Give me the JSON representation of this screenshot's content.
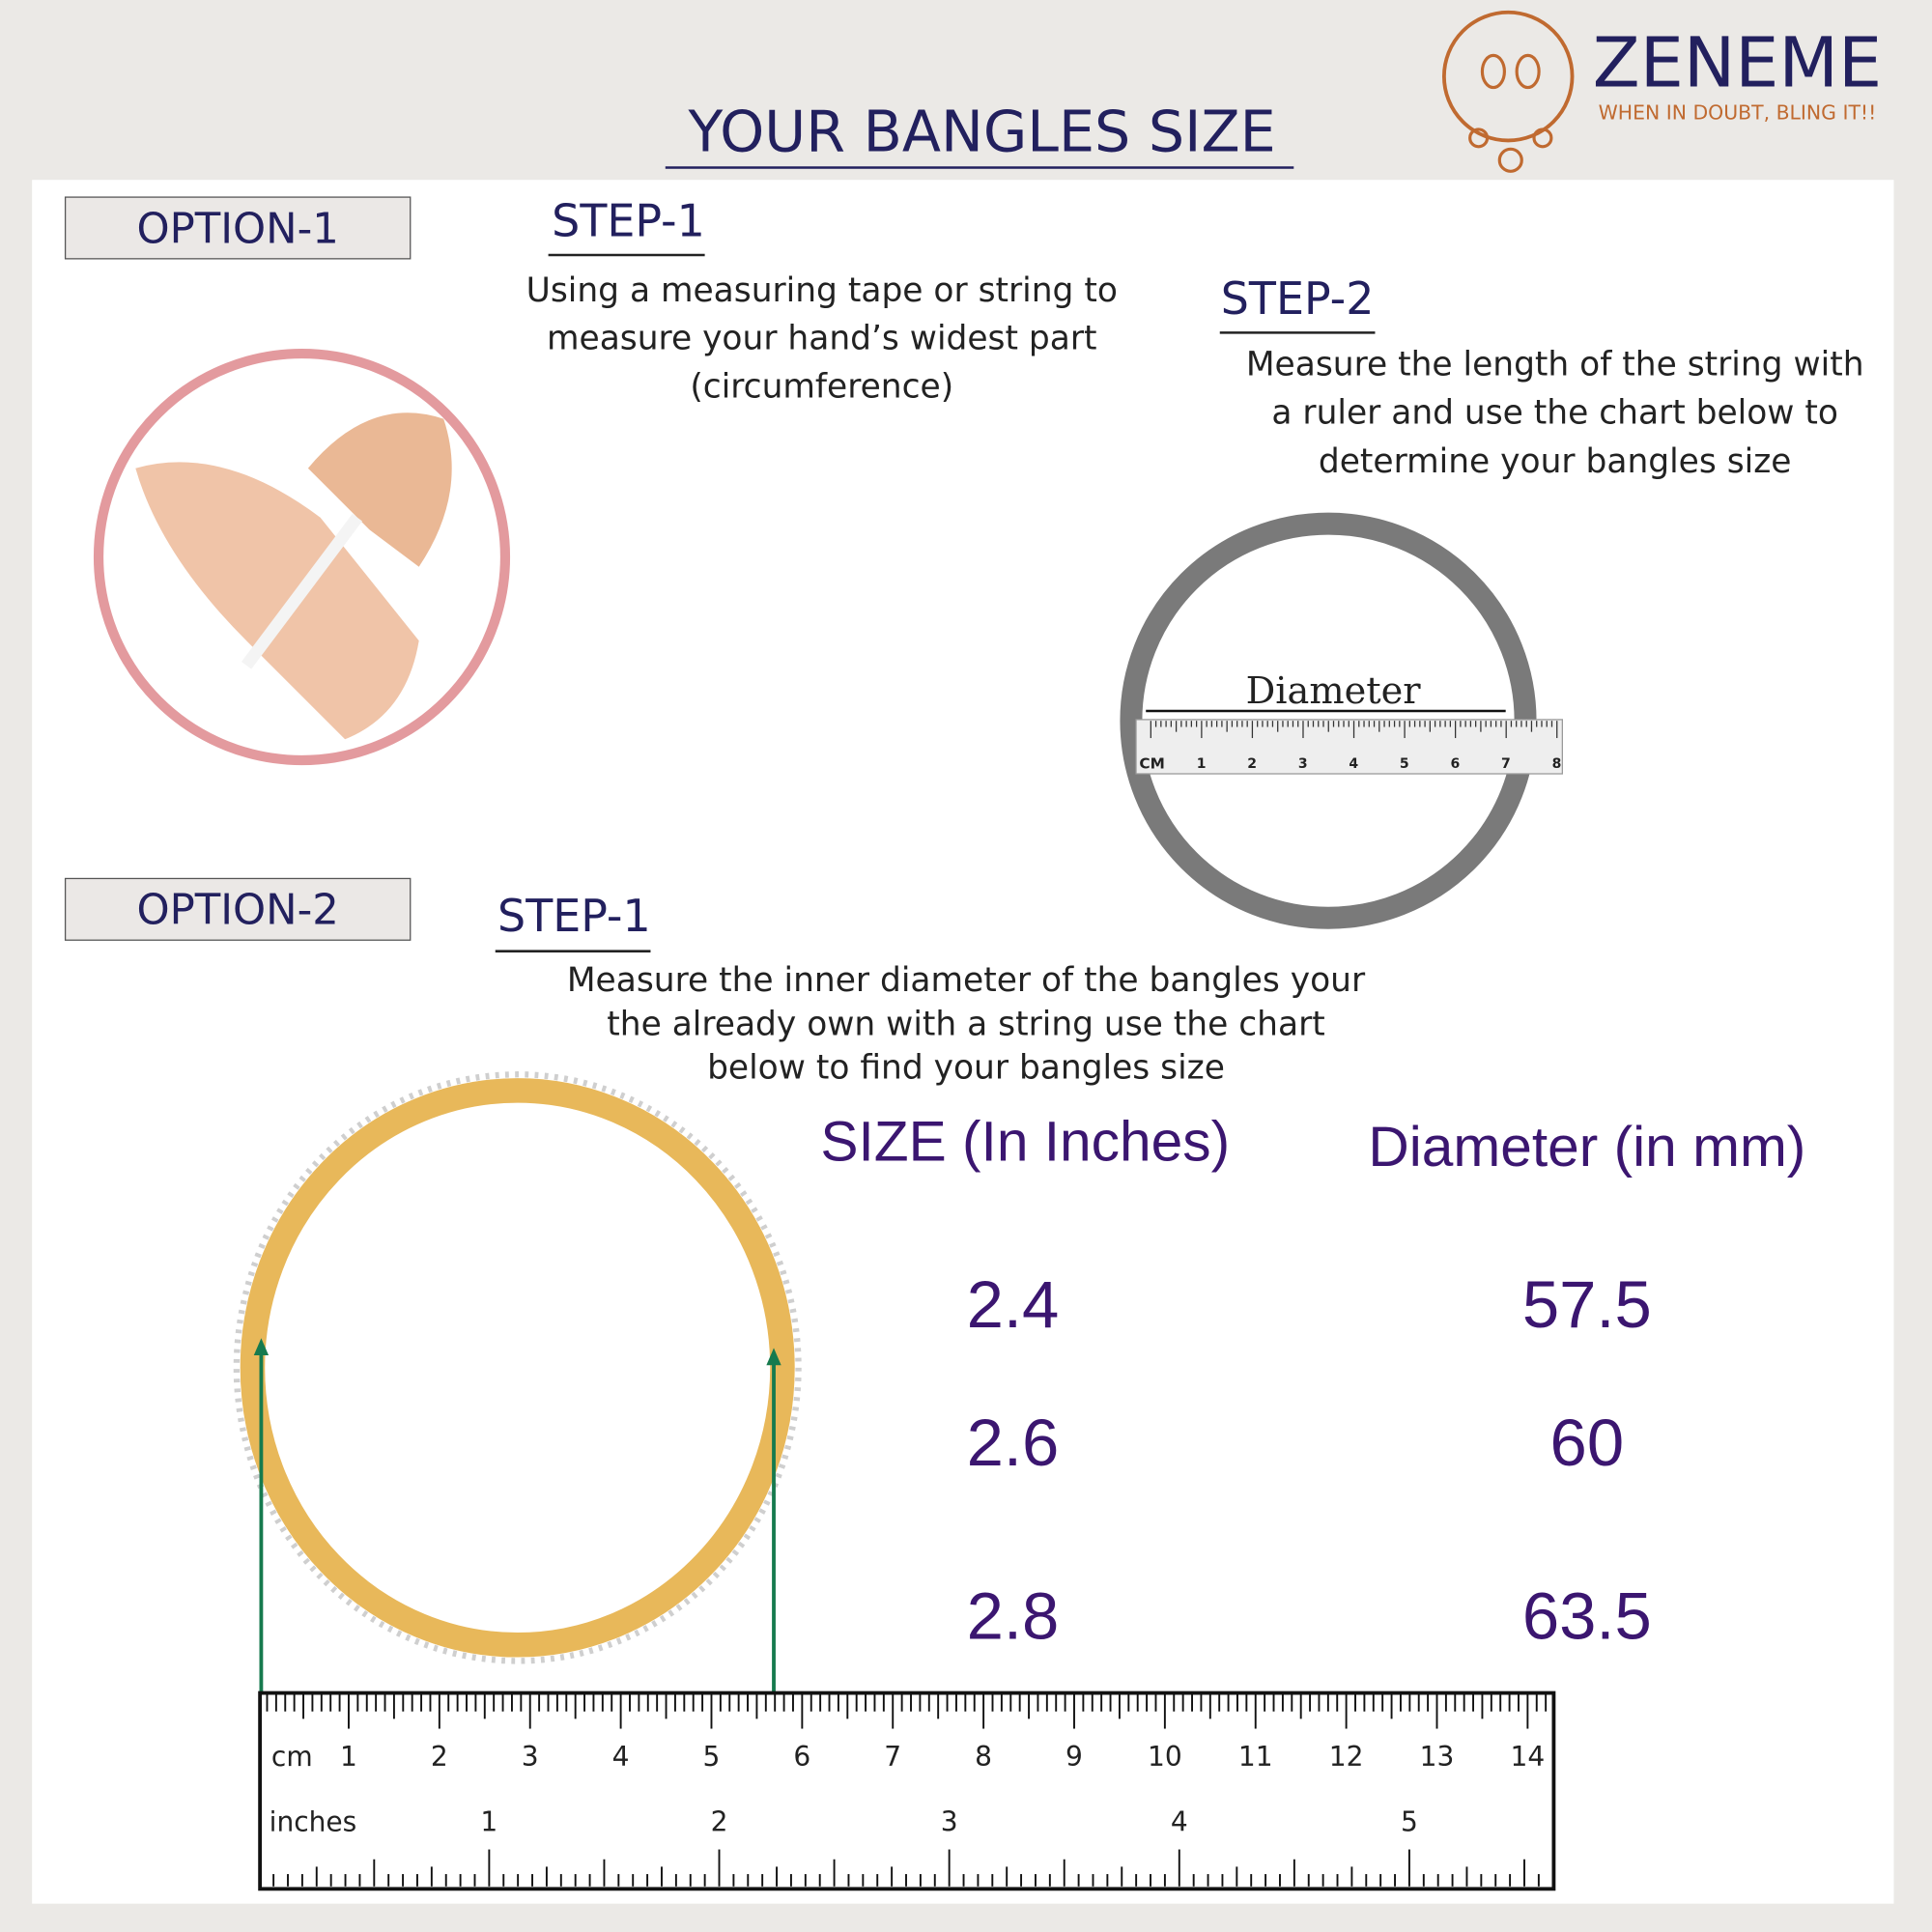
{
  "brand": {
    "name": "ZENEME",
    "tagline": "WHEN IN DOUBT, BLING IT!!"
  },
  "title": "YOUR BANGLES SIZE",
  "option_1": {
    "label": "OPTION-1",
    "step_1": {
      "heading": "STEP-1",
      "lines": [
        "Using a measuring tape or string to",
        "measure your hand’s widest part",
        "(circumference)"
      ]
    },
    "step_2": {
      "heading": "STEP-2",
      "lines": [
        "Measure the length of the string with",
        "a ruler  and use the chart below to",
        "determine your bangles size"
      ]
    },
    "diagram": {
      "label": "Diameter",
      "ruler_unit": "CM",
      "ruler_numbers": [
        1,
        2,
        3,
        4,
        5,
        6,
        7,
        8
      ]
    }
  },
  "option_2": {
    "label": "OPTION-2",
    "step_1": {
      "heading": "STEP-1",
      "lines": [
        "Measure the inner diameter of the bangles  your",
        "the already  own with a string use the chart",
        "below to find your bangles size"
      ]
    }
  },
  "size_table": {
    "headers": [
      "SIZE (In Inches)",
      "Diameter (in mm)"
    ],
    "rows": [
      [
        2.4,
        57.5
      ],
      [
        2.6,
        60
      ],
      [
        2.8,
        63.5
      ]
    ]
  },
  "ruler": {
    "cm_label": "cm",
    "cm_numbers": [
      1,
      2,
      3,
      4,
      5,
      6,
      7,
      8,
      9,
      10,
      11,
      12,
      13,
      14
    ],
    "inch_label": "inches",
    "inch_numbers": [
      1,
      2,
      3,
      4,
      5
    ]
  }
}
